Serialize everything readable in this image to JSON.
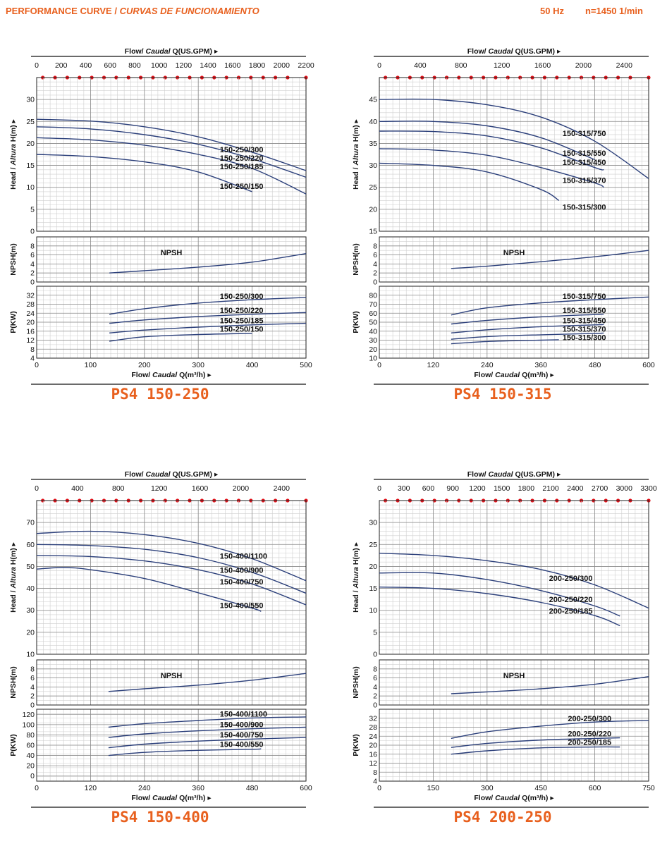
{
  "header": {
    "left_title": "PERFORMANCE CURVE",
    "left_subtitle": "CURVAS DE FUNCIONAMIENTO",
    "frequency": "50 Hz",
    "speed": "n=1450 1/min"
  },
  "axis_text": {
    "top_prefix": "Flow/ ",
    "top_italic": "Caudal",
    "top_suffix": " Q(US.GPM)",
    "bottom_prefix": "Flow/ ",
    "bottom_italic": "Caudal",
    "bottom_suffix": " Q(m³/h)",
    "head_prefix": "Head / ",
    "head_italic": "Altura",
    "head_suffix": " H(m)",
    "npsh_label": "NPSH(m)",
    "power_label": "P(KW)",
    "npsh_curve_label": "NPSH"
  },
  "chart_data": [
    {
      "type": "line",
      "title": "PS4 150-250",
      "x_m3h": {
        "range": [
          0,
          500
        ],
        "ticks": [
          0,
          100,
          200,
          300,
          400,
          500
        ]
      },
      "x_gpm": {
        "range": [
          0,
          2200
        ],
        "ticks": [
          0,
          200,
          400,
          600,
          800,
          1000,
          1200,
          1400,
          1600,
          1800,
          2000,
          2200
        ]
      },
      "head": {
        "range": [
          0,
          35
        ],
        "ticks": [
          0,
          5,
          10,
          15,
          20,
          25,
          30
        ],
        "series": [
          {
            "name": "150-250/300",
            "x": [
              0,
              100,
              200,
              300,
              400,
              500
            ],
            "y": [
              25.5,
              25.1,
              23.8,
              21.5,
              18.0,
              13.8
            ]
          },
          {
            "name": "150-250/220",
            "x": [
              0,
              100,
              200,
              300,
              400,
              500
            ],
            "y": [
              23.8,
              23.3,
              22.0,
              19.8,
              16.5,
              12.3
            ]
          },
          {
            "name": "150-250/185",
            "x": [
              0,
              100,
              200,
              300,
              400,
              500
            ],
            "y": [
              21.3,
              20.8,
              19.6,
              17.5,
              14.3,
              8.5
            ]
          },
          {
            "name": "150-250/150",
            "x": [
              0,
              100,
              200,
              300,
              400
            ],
            "y": [
              17.5,
              17.0,
              15.8,
              13.5,
              9.0
            ]
          }
        ]
      },
      "npsh": {
        "range": [
          0,
          10
        ],
        "ticks": [
          0,
          2,
          4,
          6,
          8
        ],
        "x": [
          135,
          200,
          300,
          400,
          500
        ],
        "y": [
          2.0,
          2.5,
          3.3,
          4.4,
          6.3
        ]
      },
      "power": {
        "range": [
          4,
          36
        ],
        "ticks": [
          4,
          8,
          12,
          16,
          20,
          24,
          28,
          32
        ],
        "series": [
          {
            "name": "150-250/300",
            "x": [
              135,
              200,
              300,
              400,
              500
            ],
            "y": [
              23.5,
              26.0,
              28.5,
              30.0,
              31.0
            ]
          },
          {
            "name": "150-250/220",
            "x": [
              135,
              200,
              300,
              400,
              500
            ],
            "y": [
              19.5,
              21.0,
              22.5,
              23.5,
              24.3
            ]
          },
          {
            "name": "150-250/185",
            "x": [
              135,
              200,
              300,
              400,
              500
            ],
            "y": [
              15.2,
              16.5,
              17.8,
              18.8,
              19.5
            ]
          },
          {
            "name": "150-250/150",
            "x": [
              135,
              200,
              300,
              400
            ],
            "y": [
              11.5,
              13.5,
              14.5,
              15.0
            ]
          }
        ]
      }
    },
    {
      "type": "line",
      "title": "PS4 150-315",
      "x_m3h": {
        "range": [
          0,
          600
        ],
        "ticks": [
          0,
          120,
          240,
          360,
          480,
          600
        ]
      },
      "x_gpm": {
        "range": [
          0,
          2640
        ],
        "ticks": [
          0,
          400,
          800,
          1200,
          1600,
          2000,
          2400
        ]
      },
      "head": {
        "range": [
          15,
          50
        ],
        "ticks": [
          15,
          20,
          25,
          30,
          35,
          40,
          45
        ],
        "series": [
          {
            "name": "150-315/750",
            "x": [
              0,
              120,
              240,
              360,
              480,
              600
            ],
            "y": [
              45.0,
              45.0,
              43.8,
              41.0,
              35.5,
              27.0
            ]
          },
          {
            "name": "150-315/550",
            "x": [
              0,
              120,
              240,
              360,
              480
            ],
            "y": [
              40.0,
              40.0,
              39.0,
              36.3,
              31.3
            ]
          },
          {
            "name": "150-315/450",
            "x": [
              0,
              120,
              240,
              360,
              480,
              500
            ],
            "y": [
              37.8,
              37.7,
              36.7,
              34.0,
              29.5,
              29.0
            ]
          },
          {
            "name": "150-315/370",
            "x": [
              0,
              120,
              240,
              360,
              480,
              500
            ],
            "y": [
              33.8,
              33.5,
              32.3,
              29.5,
              26.0,
              25.0
            ]
          },
          {
            "name": "150-315/300",
            "x": [
              0,
              120,
              240,
              360,
              400
            ],
            "y": [
              30.5,
              30.0,
              28.5,
              24.5,
              22.0
            ]
          }
        ]
      },
      "npsh": {
        "range": [
          0,
          10
        ],
        "ticks": [
          0,
          2,
          4,
          6,
          8
        ],
        "x": [
          160,
          240,
          360,
          480,
          600
        ],
        "y": [
          3.0,
          3.5,
          4.5,
          5.6,
          7.0
        ]
      },
      "power": {
        "range": [
          10,
          90
        ],
        "ticks": [
          10,
          20,
          30,
          40,
          50,
          60,
          70,
          80
        ],
        "series": [
          {
            "name": "150-315/750",
            "x": [
              160,
              240,
              360,
              480,
              600
            ],
            "y": [
              58.0,
              66.0,
              71.5,
              75.0,
              78.0
            ]
          },
          {
            "name": "150-315/550",
            "x": [
              160,
              240,
              360,
              480,
              500
            ],
            "y": [
              48.0,
              52.0,
              56.0,
              58.5,
              59.0
            ]
          },
          {
            "name": "150-315/450",
            "x": [
              160,
              240,
              360,
              480,
              500
            ],
            "y": [
              38.0,
              41.5,
              45.0,
              47.0,
              47.5
            ]
          },
          {
            "name": "150-315/370",
            "x": [
              160,
              240,
              360,
              480,
              500
            ],
            "y": [
              31.0,
              34.0,
              36.0,
              37.5,
              38.0
            ]
          },
          {
            "name": "150-315/300",
            "x": [
              160,
              240,
              360,
              400
            ],
            "y": [
              26.0,
              28.5,
              30.0,
              30.5
            ]
          }
        ]
      }
    },
    {
      "type": "line",
      "title": "PS4 150-400",
      "x_m3h": {
        "range": [
          0,
          600
        ],
        "ticks": [
          0,
          120,
          240,
          360,
          480,
          600
        ]
      },
      "x_gpm": {
        "range": [
          0,
          2640
        ],
        "ticks": [
          0,
          400,
          800,
          1200,
          1600,
          2000,
          2400
        ]
      },
      "head": {
        "range": [
          10,
          80
        ],
        "ticks": [
          10,
          20,
          30,
          40,
          50,
          60,
          70
        ],
        "series": [
          {
            "name": "150-400/1100",
            "x": [
              0,
              120,
              240,
              360,
              480,
              600
            ],
            "y": [
              65.0,
              66.0,
              64.5,
              60.5,
              53.5,
              43.5
            ]
          },
          {
            "name": "150-400/900",
            "x": [
              0,
              120,
              240,
              360,
              480,
              600
            ],
            "y": [
              60.0,
              59.5,
              57.8,
              54.0,
              47.3,
              37.8
            ]
          },
          {
            "name": "150-400/750",
            "x": [
              0,
              120,
              240,
              360,
              480,
              600
            ],
            "y": [
              55.0,
              54.5,
              52.5,
              48.5,
              42.0,
              32.5
            ]
          },
          {
            "name": "150-400/550",
            "x": [
              0,
              60,
              120,
              240,
              360,
              480,
              500
            ],
            "y": [
              48.8,
              49.5,
              48.5,
              44.5,
              38.0,
              31.0,
              29.5
            ]
          }
        ]
      },
      "npsh": {
        "range": [
          0,
          10
        ],
        "ticks": [
          0,
          2,
          4,
          6,
          8
        ],
        "x": [
          160,
          240,
          360,
          480,
          600
        ],
        "y": [
          3.0,
          3.6,
          4.4,
          5.5,
          7.0
        ]
      },
      "power": {
        "range": [
          -10,
          130
        ],
        "ticks": [
          0,
          20,
          40,
          60,
          80,
          100,
          120
        ],
        "series": [
          {
            "name": "150-400/1100",
            "x": [
              160,
              240,
              360,
              480,
              600
            ],
            "y": [
              95.0,
              102.0,
              108.0,
              113.0,
              115.0
            ]
          },
          {
            "name": "150-400/900",
            "x": [
              160,
              240,
              360,
              480,
              600
            ],
            "y": [
              75.0,
              82.0,
              88.0,
              92.0,
              95.0
            ]
          },
          {
            "name": "150-400/750",
            "x": [
              160,
              240,
              360,
              480,
              600
            ],
            "y": [
              55.0,
              62.0,
              68.0,
              72.0,
              75.0
            ]
          },
          {
            "name": "150-400/550",
            "x": [
              160,
              240,
              360,
              480,
              500
            ],
            "y": [
              40.0,
              46.0,
              50.0,
              52.0,
              53.0
            ]
          }
        ]
      }
    },
    {
      "type": "line",
      "title": "PS4 200-250",
      "x_m3h": {
        "range": [
          0,
          750
        ],
        "ticks": [
          0,
          150,
          300,
          450,
          600,
          750
        ]
      },
      "x_gpm": {
        "range": [
          0,
          3300
        ],
        "ticks": [
          0,
          300,
          600,
          900,
          1200,
          1500,
          1800,
          2100,
          2400,
          2700,
          3000,
          3300
        ]
      },
      "head": {
        "range": [
          0,
          35
        ],
        "ticks": [
          0,
          5,
          10,
          15,
          20,
          25,
          30
        ],
        "series": [
          {
            "name": "200-250/300",
            "x": [
              0,
              150,
              300,
              450,
              600,
              750
            ],
            "y": [
              23.0,
              22.5,
              21.3,
              19.3,
              15.8,
              10.5
            ]
          },
          {
            "name": "200-250/220",
            "x": [
              0,
              150,
              300,
              450,
              600,
              670
            ],
            "y": [
              18.5,
              18.5,
              17.0,
              14.5,
              11.0,
              8.7
            ]
          },
          {
            "name": "200-250/185",
            "x": [
              0,
              150,
              300,
              450,
              600,
              670
            ],
            "y": [
              15.3,
              15.0,
              13.8,
              11.8,
              8.8,
              6.5
            ]
          }
        ]
      },
      "npsh": {
        "range": [
          0,
          10
        ],
        "ticks": [
          0,
          2,
          4,
          6,
          8
        ],
        "x": [
          200,
          300,
          450,
          600,
          750
        ],
        "y": [
          2.5,
          2.9,
          3.6,
          4.6,
          6.3
        ]
      },
      "power": {
        "range": [
          4,
          36
        ],
        "ticks": [
          4,
          8,
          12,
          16,
          20,
          24,
          28,
          32
        ],
        "series": [
          {
            "name": "200-250/300",
            "x": [
              200,
              300,
              450,
              600,
              750
            ],
            "y": [
              23.0,
              26.0,
              28.5,
              30.3,
              31.0
            ]
          },
          {
            "name": "200-250/220",
            "x": [
              200,
              300,
              450,
              600,
              670
            ],
            "y": [
              19.0,
              20.8,
              22.3,
              23.0,
              23.3
            ]
          },
          {
            "name": "200-250/185",
            "x": [
              200,
              300,
              450,
              600,
              670
            ],
            "y": [
              16.0,
              17.5,
              18.8,
              19.2,
              19.2
            ]
          }
        ]
      }
    }
  ]
}
